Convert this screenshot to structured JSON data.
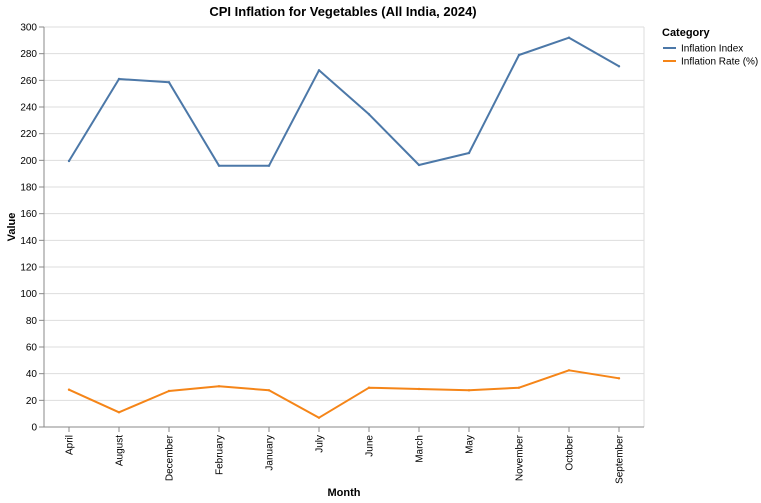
{
  "chart_data": {
    "type": "line",
    "title": "CPI Inflation for Vegetables (All India, 2024)",
    "xlabel": "Month",
    "ylabel": "Value",
    "ylim": [
      0,
      300
    ],
    "yticks": [
      0,
      20,
      40,
      60,
      80,
      100,
      120,
      140,
      160,
      180,
      200,
      220,
      240,
      260,
      280,
      300
    ],
    "grid": true,
    "legend_placement": "right",
    "legend_title": "Category",
    "categories": [
      "April",
      "August",
      "December",
      "February",
      "January",
      "July",
      "June",
      "March",
      "May",
      "November",
      "October",
      "September"
    ],
    "series": [
      {
        "name": "Inflation Index",
        "color": "#4c78a8",
        "values": [
          199.5,
          261,
          258.5,
          196,
          196,
          267.5,
          234.5,
          196.5,
          205.5,
          279,
          292,
          270.5
        ]
      },
      {
        "name": "Inflation Rate (%)",
        "color": "#f58518",
        "values": [
          28,
          11,
          27,
          30.5,
          27.5,
          7,
          29.5,
          28.5,
          27.5,
          29.5,
          42.5,
          36.5
        ]
      }
    ]
  }
}
